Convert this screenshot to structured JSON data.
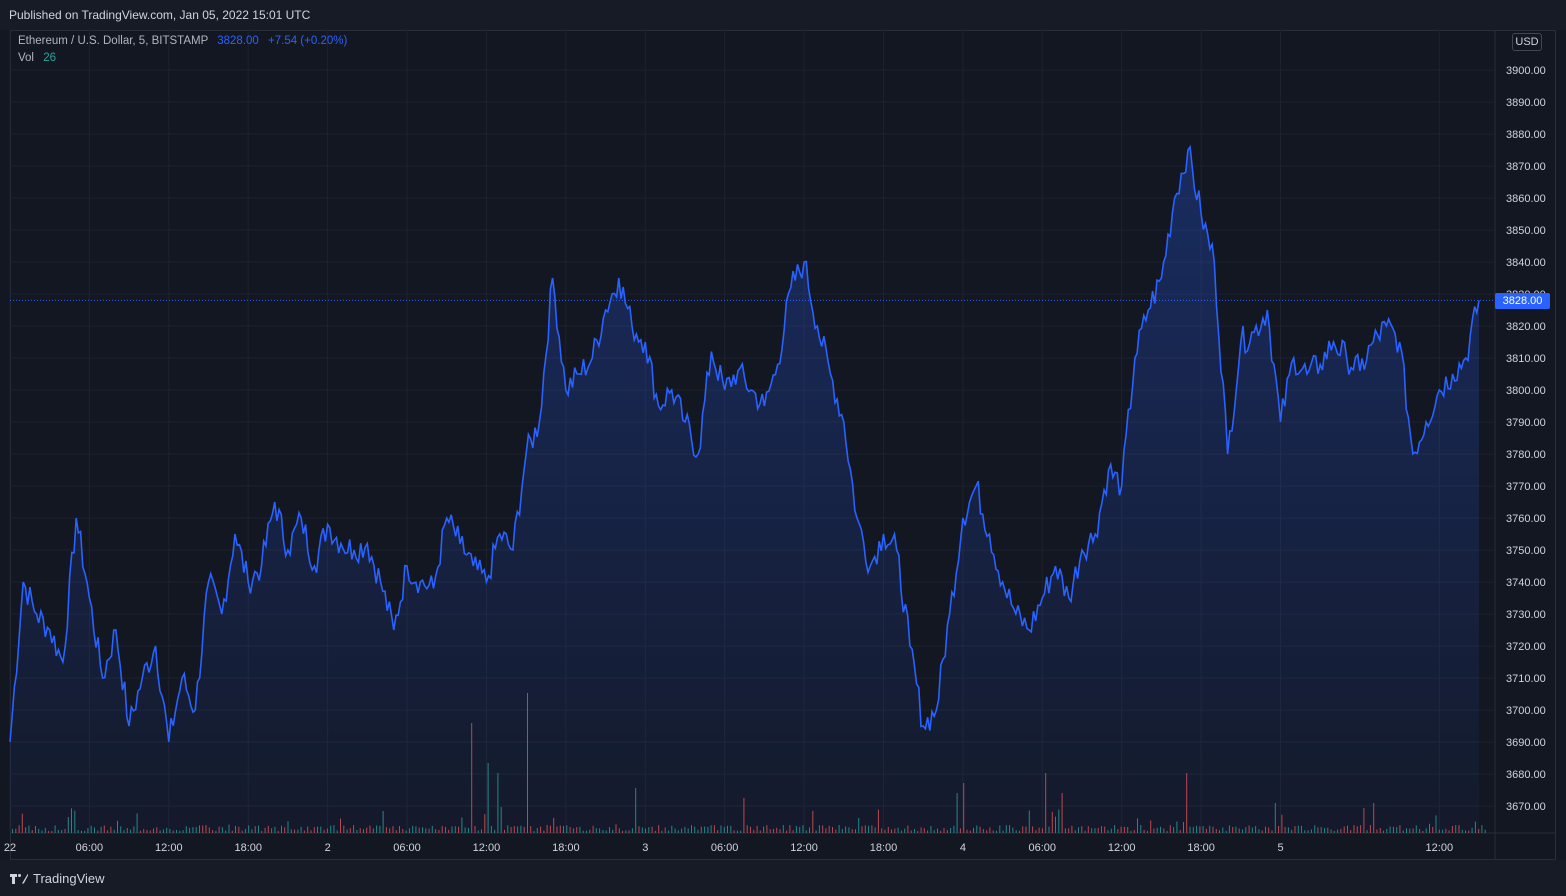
{
  "header": {
    "published": "Published on TradingView.com, Jan 05, 2022 15:01 UTC"
  },
  "legend": {
    "symbol": "Ethereum / U.S. Dollar, 5, BITSTAMP",
    "price": "3828.00",
    "change": "+7.54 (+0.20%)",
    "vol_label": "Vol",
    "vol_value": "26"
  },
  "axis": {
    "currency": "USD",
    "last_price_label": "3828.00"
  },
  "footer": {
    "brand": "TradingView"
  },
  "colors": {
    "background": "#131722",
    "line": "#2962ff",
    "grid": "#1e222d",
    "vol_up": "#26a69a",
    "vol_down": "#ef5350"
  },
  "chart_data": {
    "type": "area",
    "title": "Ethereum / U.S. Dollar, 5, BITSTAMP",
    "xlabel": "",
    "ylabel": "USD",
    "ylim": [
      3660,
      3905
    ],
    "last_price": 3828.0,
    "y_ticks": [
      3900,
      3890,
      3880,
      3870,
      3860,
      3850,
      3840,
      3830,
      3820,
      3810,
      3800,
      3790,
      3780,
      3770,
      3760,
      3750,
      3740,
      3730,
      3720,
      3710,
      3700,
      3690,
      3680,
      3670
    ],
    "x_ticks": [
      "22",
      "06:00",
      "12:00",
      "18:00",
      "2",
      "06:00",
      "12:00",
      "18:00",
      "3",
      "06:00",
      "12:00",
      "18:00",
      "4",
      "06:00",
      "12:00",
      "18:00",
      "5",
      "12:00"
    ],
    "x_tick_hours": [
      0,
      6,
      12,
      18,
      24,
      30,
      36,
      42,
      48,
      54,
      60,
      66,
      72,
      78,
      84,
      90,
      96,
      108
    ],
    "x_range_hours": [
      0,
      111.3
    ],
    "series": [
      {
        "hours": [
          0,
          1,
          2,
          3,
          4,
          5,
          6,
          7,
          8,
          9,
          10,
          11,
          12,
          13,
          14,
          15,
          16,
          17,
          18,
          19,
          20,
          21,
          22,
          23,
          24,
          25,
          26,
          27,
          28,
          29,
          30,
          31,
          32,
          33,
          34,
          35,
          36,
          37,
          38,
          39,
          40,
          41,
          42,
          43,
          44,
          45,
          46,
          47,
          48,
          49,
          50,
          51,
          52,
          53,
          54,
          55,
          56,
          57,
          58,
          59,
          60,
          61,
          62,
          63,
          64,
          65,
          66,
          67,
          68,
          69,
          70,
          71,
          72,
          73,
          74,
          75,
          76,
          77,
          78,
          79,
          80,
          81,
          82,
          83,
          84,
          85,
          86,
          87,
          88,
          89,
          90,
          91,
          92,
          93,
          94,
          95,
          96,
          97,
          98,
          99,
          100,
          101,
          102,
          103,
          104,
          105,
          106,
          107,
          108,
          109,
          110,
          111
        ],
        "values": [
          3690,
          3740,
          3730,
          3725,
          3715,
          3760,
          3735,
          3710,
          3725,
          3695,
          3710,
          3720,
          3690,
          3710,
          3700,
          3740,
          3730,
          3755,
          3740,
          3745,
          3765,
          3750,
          3760,
          3745,
          3758,
          3752,
          3750,
          3752,
          3740,
          3725,
          3745,
          3740,
          3738,
          3760,
          3752,
          3745,
          3740,
          3755,
          3750,
          3780,
          3790,
          3835,
          3800,
          3805,
          3810,
          3825,
          3835,
          3820,
          3815,
          3795,
          3800,
          3790,
          3780,
          3812,
          3800,
          3806,
          3800,
          3795,
          3808,
          3832,
          3840,
          3820,
          3805,
          3790,
          3760,
          3745,
          3755,
          3750,
          3720,
          3695,
          3700,
          3730,
          3760,
          3770,
          3755,
          3740,
          3730,
          3725,
          3735,
          3745,
          3735,
          3750,
          3755,
          3775,
          3770,
          3810,
          3825,
          3835,
          3860,
          3875,
          3855,
          3840,
          3780,
          3815,
          3818,
          3825,
          3790,
          3810,
          3805,
          3808,
          3815,
          3810,
          3806,
          3815,
          3820,
          3815,
          3780,
          3790,
          3800,
          3805,
          3810,
          3828
        ]
      }
    ]
  }
}
